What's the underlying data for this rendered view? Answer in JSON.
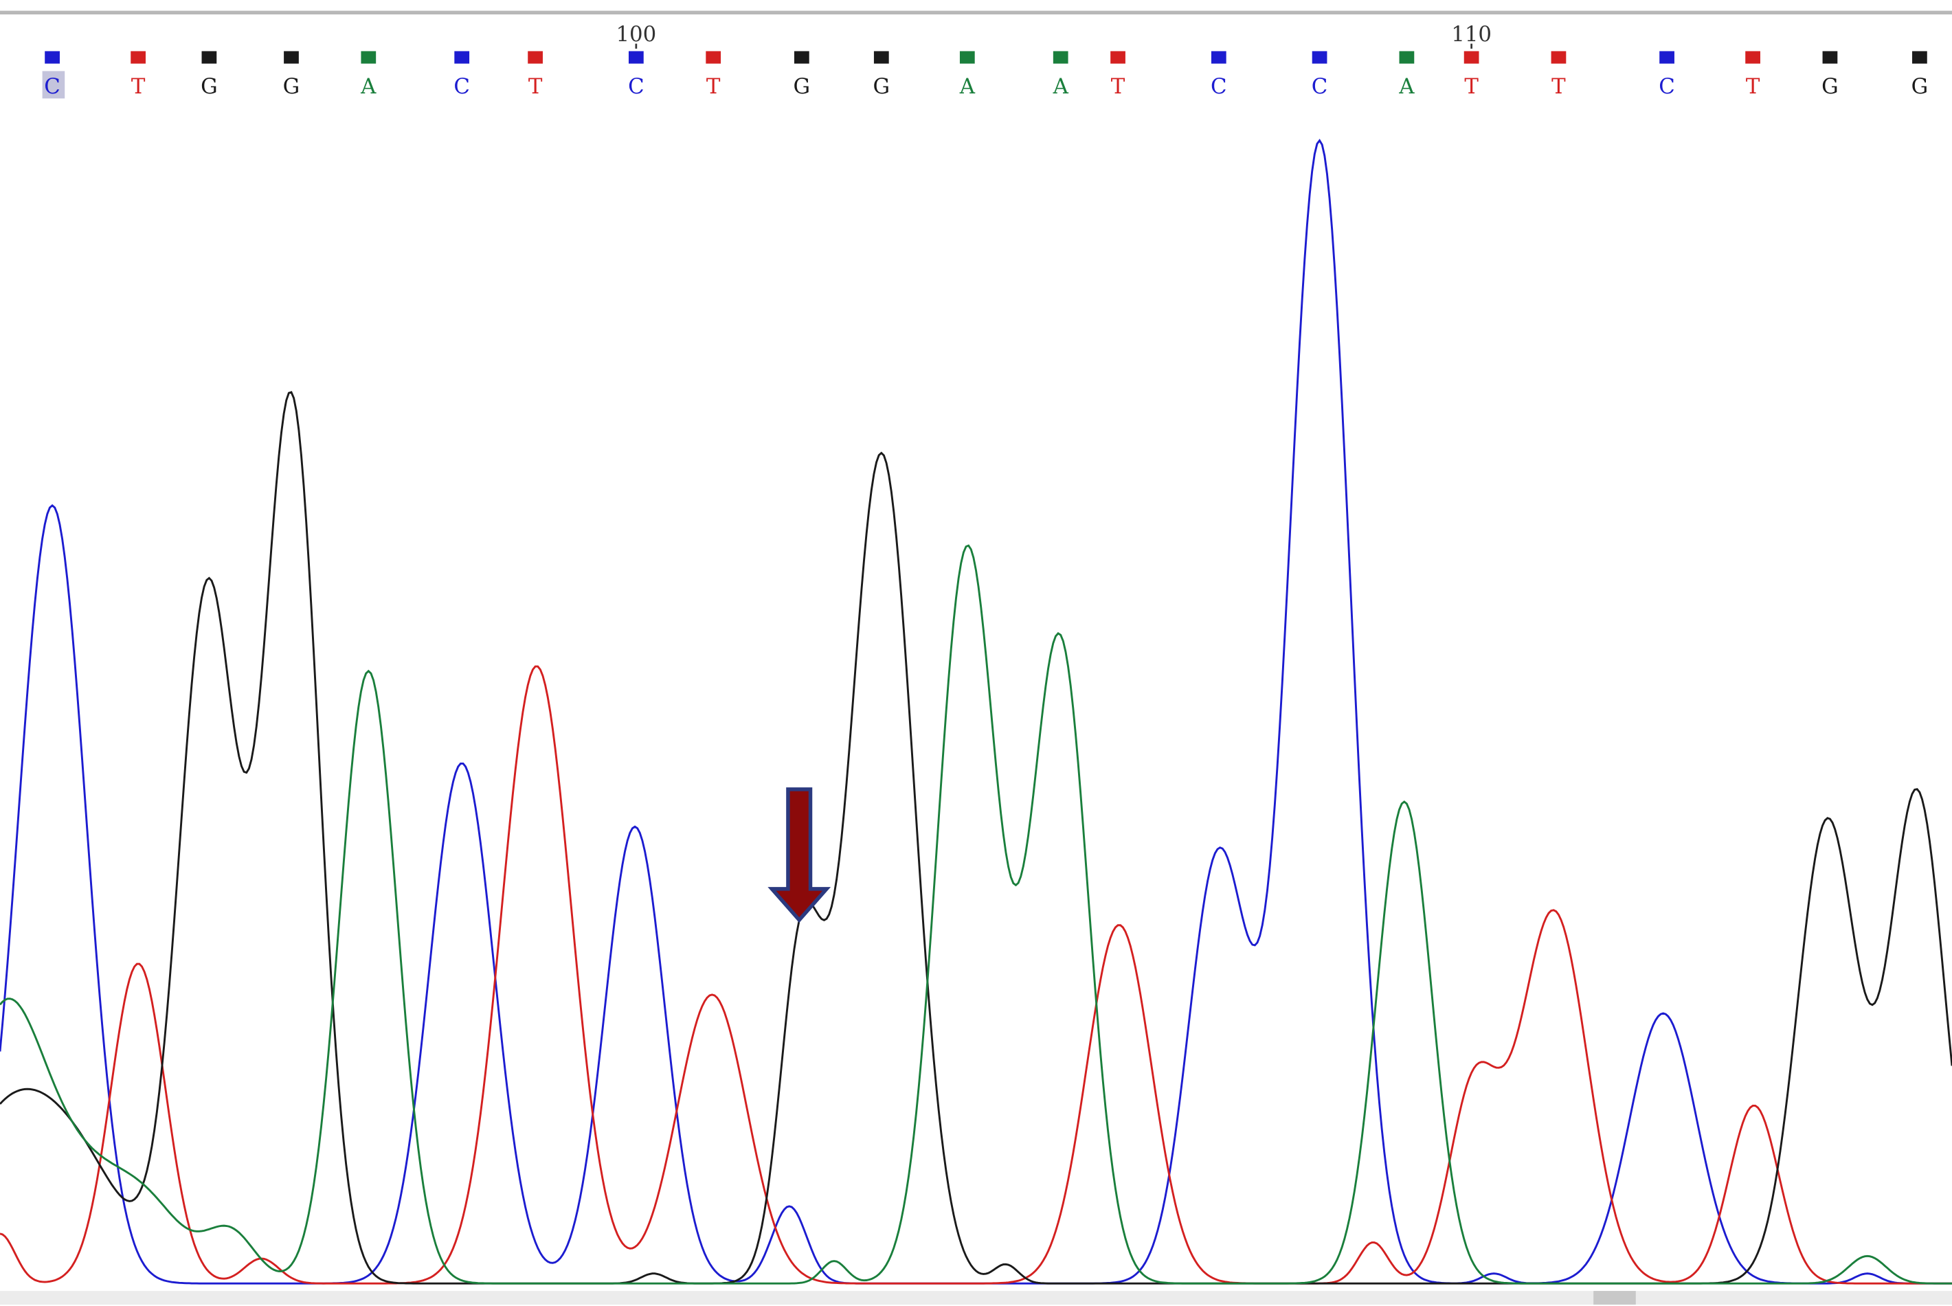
{
  "sequence": {
    "bases": [
      "C",
      "T",
      "G",
      "G",
      "A",
      "C",
      "T",
      "C",
      "T",
      "G",
      "G",
      "A",
      "A",
      "T",
      "C",
      "C",
      "A",
      "T",
      "T",
      "C",
      "T",
      "G",
      "G"
    ],
    "colors": {
      "A": "#1a7f3c",
      "C": "#1c1cd0",
      "G": "#1a1a1a",
      "T": "#d42020"
    }
  },
  "ruler": [
    100,
    110
  ]
}
